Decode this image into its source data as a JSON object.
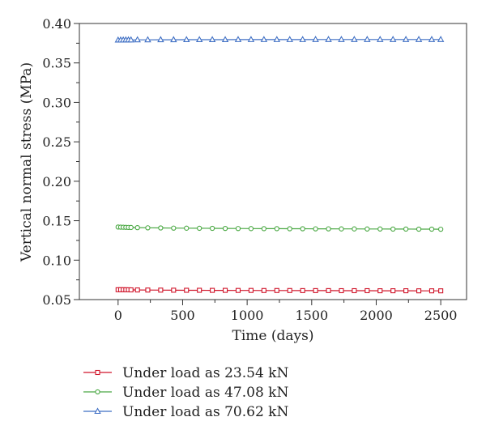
{
  "chart_data": {
    "type": "line",
    "xlabel": "Time (days)",
    "ylabel": "Vertical normal stress (MPa)",
    "xlim": [
      -300,
      2700
    ],
    "ylim": [
      0.05,
      0.4
    ],
    "x_ticks": [
      0,
      500,
      1000,
      1500,
      2000,
      2500
    ],
    "x_tick_labels": [
      "0",
      "500",
      "1000",
      "1500",
      "2000",
      "2500"
    ],
    "y_ticks": [
      0.05,
      0.1,
      0.15,
      0.2,
      0.25,
      0.3,
      0.35,
      0.4
    ],
    "y_tick_labels": [
      "0.05",
      "0.10",
      "0.15",
      "0.20",
      "0.25",
      "0.30",
      "0.35",
      "0.40"
    ],
    "grid": false,
    "legend_position": "bottom",
    "x": [
      0,
      20,
      40,
      60,
      80,
      100,
      150,
      230,
      330,
      430,
      530,
      630,
      730,
      830,
      930,
      1030,
      1130,
      1230,
      1330,
      1430,
      1530,
      1630,
      1730,
      1830,
      1930,
      2030,
      2130,
      2230,
      2330,
      2430,
      2500
    ],
    "series": [
      {
        "name": "Under load as 23.54 kN",
        "color": "#d0152a",
        "marker": "square",
        "values": [
          0.0625,
          0.0625,
          0.0625,
          0.0624,
          0.0624,
          0.0623,
          0.0622,
          0.0621,
          0.062,
          0.0619,
          0.0618,
          0.0618,
          0.0617,
          0.0617,
          0.0616,
          0.0616,
          0.0615,
          0.0615,
          0.0615,
          0.0614,
          0.0614,
          0.0614,
          0.0613,
          0.0613,
          0.0613,
          0.0612,
          0.0612,
          0.0612,
          0.0611,
          0.0611,
          0.0611
        ]
      },
      {
        "name": "Under load as 47.08 kN",
        "color": "#4aa843",
        "marker": "circle",
        "values": [
          0.142,
          0.1418,
          0.1417,
          0.1416,
          0.1415,
          0.1414,
          0.1412,
          0.141,
          0.1408,
          0.1406,
          0.1405,
          0.1404,
          0.1403,
          0.1402,
          0.1401,
          0.14,
          0.1399,
          0.1399,
          0.1398,
          0.1398,
          0.1397,
          0.1397,
          0.1396,
          0.1396,
          0.1395,
          0.1395,
          0.1394,
          0.1394,
          0.1393,
          0.1393,
          0.1392
        ]
      },
      {
        "name": "Under load as 70.62 kN",
        "color": "#3f6fc4",
        "marker": "triangle",
        "values": [
          0.379,
          0.3791,
          0.3791,
          0.3792,
          0.3792,
          0.3792,
          0.3793,
          0.3793,
          0.3794,
          0.3794,
          0.3795,
          0.3795,
          0.3795,
          0.3795,
          0.3796,
          0.3796,
          0.3796,
          0.3796,
          0.3796,
          0.3796,
          0.3797,
          0.3797,
          0.3797,
          0.3797,
          0.3797,
          0.3797,
          0.3797,
          0.3797,
          0.3797,
          0.3797,
          0.3797
        ]
      }
    ]
  }
}
